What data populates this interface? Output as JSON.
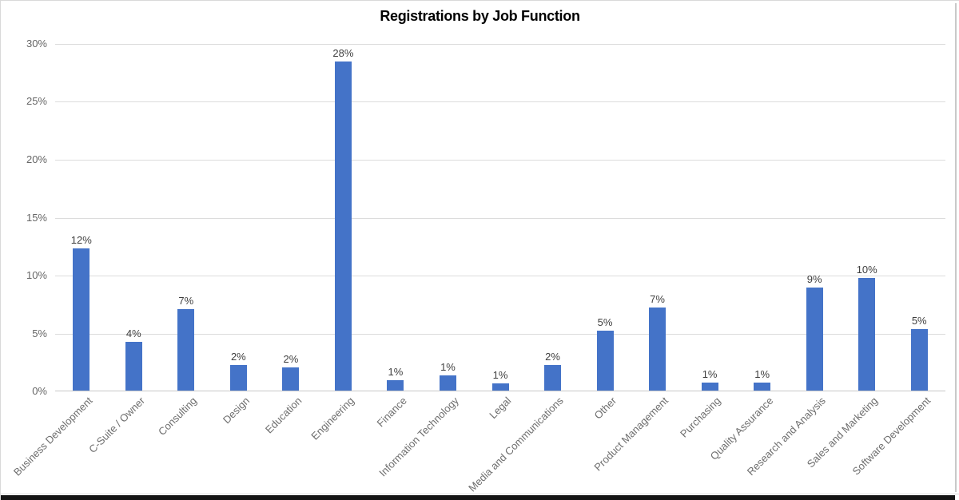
{
  "chart_data": {
    "type": "bar",
    "title": "Registrations by Job Function",
    "categories": [
      "Business Development",
      "C-Suite / Owner",
      "Consulting",
      "Design",
      "Education",
      "Engineering",
      "Finance",
      "Information Technology",
      "Legal",
      "Media and Communications",
      "Other",
      "Product Management",
      "Purchasing",
      "Quality Assurance",
      "Research and Analysis",
      "Sales and Marketing",
      "Software Development"
    ],
    "values": [
      12.3,
      4.2,
      7.0,
      2.2,
      2.0,
      28.4,
      0.9,
      1.3,
      0.6,
      2.2,
      5.2,
      7.2,
      0.7,
      0.7,
      8.9,
      9.7,
      5.3
    ],
    "bar_labels": [
      "12%",
      "4%",
      "7%",
      "2%",
      "2%",
      "28%",
      "1%",
      "1%",
      "1%",
      "2%",
      "5%",
      "7%",
      "1%",
      "1%",
      "9%",
      "10%",
      "5%"
    ],
    "xlabel": "",
    "ylabel": "",
    "ylim": [
      0,
      30
    ],
    "yticks": [
      0,
      5,
      10,
      15,
      20,
      25,
      30
    ],
    "ytick_labels": [
      "0%",
      "5%",
      "10%",
      "15%",
      "20%",
      "25%",
      "30%"
    ],
    "grid": true,
    "legend": "none",
    "colors": {
      "bar": "#4473C8",
      "gridline": "#dcdcdc",
      "axis_line": "#c8c8c8",
      "ytick_text": "#666666",
      "category_text": "#6e6e6e",
      "data_label_text": "#3f3f3f",
      "title_text": "#000000",
      "frame_border": "#d9d9d9",
      "window_edge": "#141414"
    }
  }
}
